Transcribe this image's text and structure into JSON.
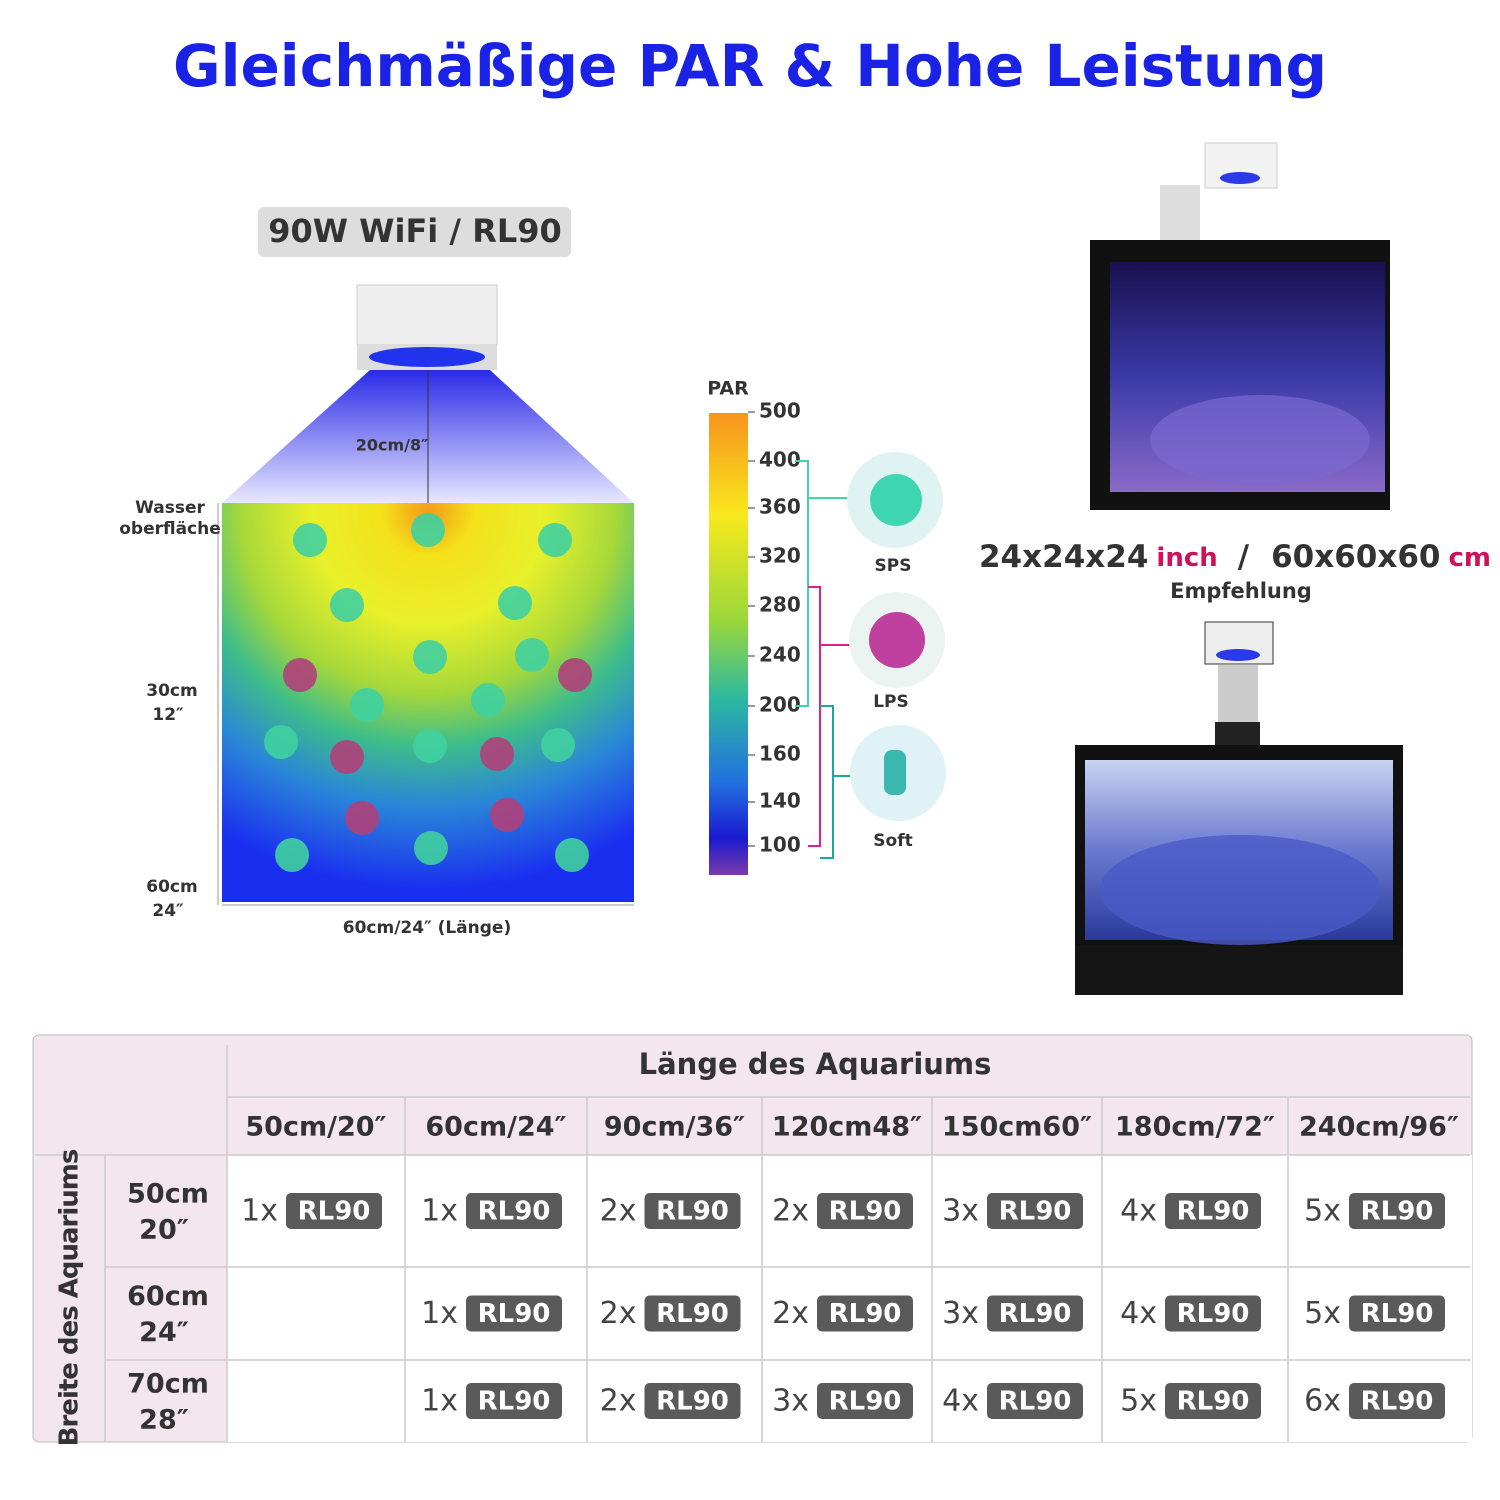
{
  "title": "Gleichmäßige PAR & Hohe Leistung",
  "diagram": {
    "badge": "90W WiFi / RL90",
    "distance": "20cm/8″",
    "surface": [
      "Wasser",
      "oberfläche"
    ],
    "depth_labels": [
      [
        "30cm",
        "12″"
      ],
      [
        "60cm",
        "24″"
      ]
    ],
    "length_label": "60cm/24″ (Länge)"
  },
  "par_scale": {
    "title": "PAR",
    "ticks": [
      500,
      400,
      360,
      320,
      280,
      240,
      200,
      160,
      140,
      100
    ]
  },
  "corals": [
    "SPS",
    "LPS",
    "Soft"
  ],
  "tank": {
    "size_inch": "24x24x24",
    "unit_inch": "inch",
    "separator": "/",
    "size_cm": "60x60x60",
    "unit_cm": "cm",
    "recommendation": "Empfehlung"
  },
  "table": {
    "column_title": "Länge des Aquariums",
    "row_title": "Breite des Aquariums",
    "columns": [
      "50cm/20″",
      "60cm/24″",
      "90cm/36″",
      "120cm48″",
      "150cm60″",
      "180cm/72″",
      "240cm/96″"
    ],
    "rows": [
      {
        "label": [
          "50cm",
          "20″"
        ],
        "cells": [
          {
            "count": "1x",
            "model": "RL90"
          },
          {
            "count": "1x",
            "model": "RL90"
          },
          {
            "count": "2x",
            "model": "RL90"
          },
          {
            "count": "2x",
            "model": "RL90"
          },
          {
            "count": "3x",
            "model": "RL90"
          },
          {
            "count": "4x",
            "model": "RL90"
          },
          {
            "count": "5x",
            "model": "RL90"
          }
        ]
      },
      {
        "label": [
          "60cm",
          "24″"
        ],
        "cells": [
          null,
          {
            "count": "1x",
            "model": "RL90"
          },
          {
            "count": "2x",
            "model": "RL90"
          },
          {
            "count": "2x",
            "model": "RL90"
          },
          {
            "count": "3x",
            "model": "RL90"
          },
          {
            "count": "4x",
            "model": "RL90"
          },
          {
            "count": "5x",
            "model": "RL90"
          }
        ]
      },
      {
        "label": [
          "70cm",
          "28″"
        ],
        "cells": [
          null,
          {
            "count": "1x",
            "model": "RL90"
          },
          {
            "count": "2x",
            "model": "RL90"
          },
          {
            "count": "3x",
            "model": "RL90"
          },
          {
            "count": "4x",
            "model": "RL90"
          },
          {
            "count": "5x",
            "model": "RL90"
          },
          {
            "count": "6x",
            "model": "RL90"
          }
        ]
      }
    ]
  }
}
